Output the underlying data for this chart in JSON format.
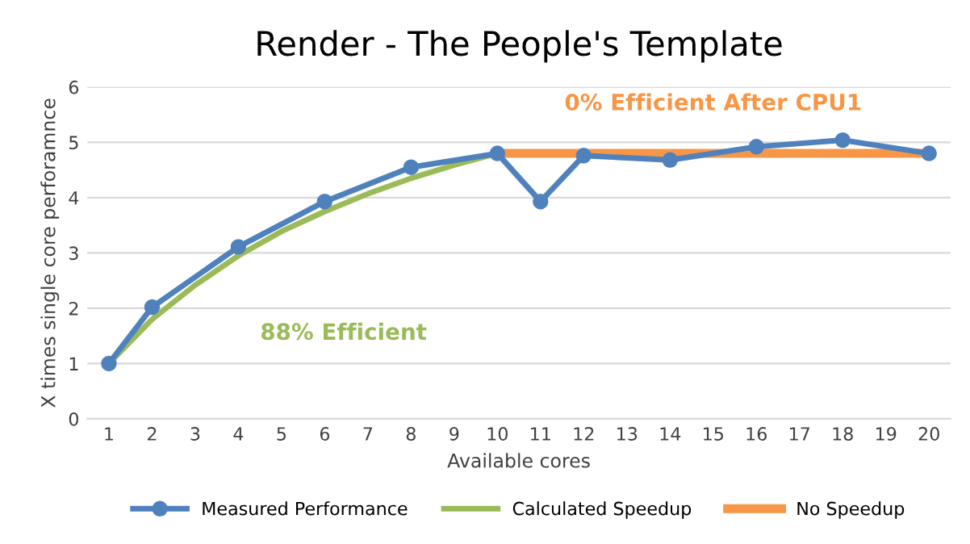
{
  "chart_data": {
    "type": "line",
    "title": "Render - The People's Template",
    "xlabel": "Available cores",
    "ylabel": "X times single core perforamnce",
    "xlim": [
      0.5,
      20.5
    ],
    "xticks": [
      1,
      2,
      3,
      4,
      5,
      6,
      7,
      8,
      9,
      10,
      11,
      12,
      13,
      14,
      15,
      16,
      17,
      18,
      19,
      20
    ],
    "ylim": [
      0,
      6
    ],
    "yticks": [
      0,
      1,
      2,
      3,
      4,
      5,
      6
    ],
    "grid": "y",
    "legend": "bottom",
    "series": [
      {
        "name": "Measured Performance",
        "color": "#4f81bd",
        "marker": "circle",
        "x": [
          1,
          2,
          4,
          6,
          8,
          10,
          11,
          12,
          14,
          16,
          18,
          20
        ],
        "values": [
          1.0,
          2.02,
          3.11,
          3.93,
          4.55,
          4.8,
          3.93,
          4.76,
          4.68,
          4.92,
          5.04,
          4.8
        ]
      },
      {
        "name": "Calculated Speedup",
        "color": "#9bbb59",
        "marker": "none",
        "x": [
          1,
          2,
          3,
          4,
          5,
          6,
          7,
          8,
          9,
          10
        ],
        "values": [
          1.0,
          1.8,
          2.42,
          2.95,
          3.39,
          3.75,
          4.07,
          4.35,
          4.59,
          4.8
        ]
      },
      {
        "name": "No Speedup",
        "color": "#f79646",
        "marker": "none",
        "x": [
          10,
          20
        ],
        "values": [
          4.8,
          4.8
        ]
      }
    ],
    "annotations": [
      "88% Efficient",
      "0% Efficient After CPU1"
    ]
  }
}
